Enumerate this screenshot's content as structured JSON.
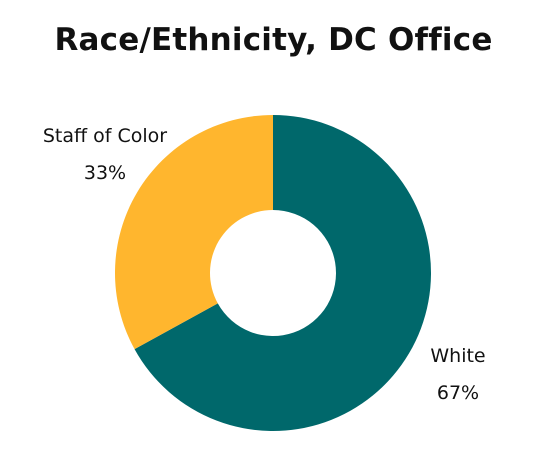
{
  "chart_data": {
    "type": "pie",
    "title": "Race/Ethnicity, DC Office",
    "donut": true,
    "slices": [
      {
        "label": "White",
        "value": 67,
        "value_label": "67%",
        "color": "#00686b"
      },
      {
        "label": "Staff of Color",
        "value": 33,
        "value_label": "33%",
        "color": "#ffb62e"
      }
    ],
    "start_angle_deg": 0,
    "direction": "clockwise",
    "legend": "none",
    "labels_placement": "outside"
  }
}
